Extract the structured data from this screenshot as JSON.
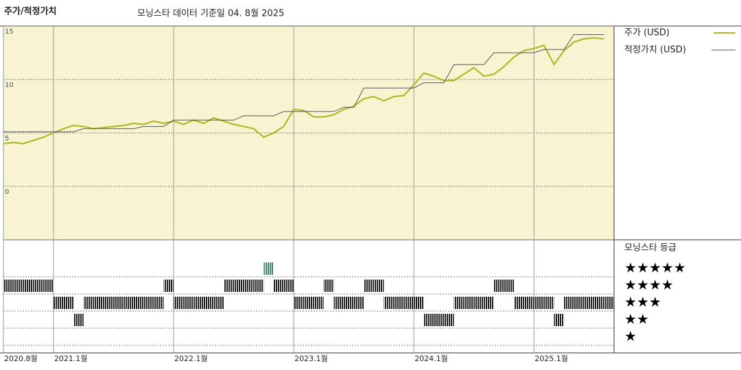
{
  "chart_data": [
    {
      "type": "line",
      "title": "주가/적정가치",
      "subtitle": "모닝스타 데이터 기준일 04. 8월 2025",
      "x": [
        "2020-08",
        "2020-09",
        "2020-10",
        "2020-11",
        "2020-12",
        "2021-01",
        "2021-02",
        "2021-03",
        "2021-04",
        "2021-05",
        "2021-06",
        "2021-07",
        "2021-08",
        "2021-09",
        "2021-10",
        "2021-11",
        "2021-12",
        "2022-01",
        "2022-02",
        "2022-03",
        "2022-04",
        "2022-05",
        "2022-06",
        "2022-07",
        "2022-08",
        "2022-09",
        "2022-10",
        "2022-11",
        "2022-12",
        "2023-01",
        "2023-02",
        "2023-03",
        "2023-04",
        "2023-05",
        "2023-06",
        "2023-07",
        "2023-08",
        "2023-09",
        "2023-10",
        "2023-11",
        "2023-12",
        "2024-01",
        "2024-02",
        "2024-03",
        "2024-04",
        "2024-05",
        "2024-06",
        "2024-07",
        "2024-08",
        "2024-09",
        "2024-10",
        "2024-11",
        "2024-12",
        "2025-01",
        "2025-02",
        "2025-03",
        "2025-04",
        "2025-05",
        "2025-06",
        "2025-07",
        "2025-08"
      ],
      "series": [
        {
          "name": "주가 (USD)",
          "color": "#b3b82a",
          "width": 2.2,
          "values": [
            4.0,
            4.1,
            4.0,
            4.3,
            4.6,
            5.0,
            5.4,
            5.7,
            5.6,
            5.4,
            5.5,
            5.6,
            5.7,
            5.9,
            5.8,
            6.1,
            5.9,
            6.1,
            5.8,
            6.2,
            5.9,
            6.4,
            6.1,
            5.8,
            5.6,
            5.4,
            4.6,
            5.0,
            5.6,
            7.2,
            7.1,
            6.5,
            6.5,
            6.7,
            7.2,
            7.5,
            8.2,
            8.4,
            8.0,
            8.4,
            8.5,
            9.5,
            10.6,
            10.3,
            9.9,
            9.9,
            10.5,
            11.1,
            10.3,
            10.5,
            11.2,
            12.1,
            12.7,
            12.9,
            13.2,
            11.4,
            12.7,
            13.5,
            13.8,
            13.9,
            13.8
          ]
        },
        {
          "name": "적정가치 (USD)",
          "color": "#555555",
          "width": 1,
          "values": [
            5.1,
            5.1,
            5.1,
            5.1,
            5.1,
            5.1,
            5.1,
            5.1,
            5.4,
            5.4,
            5.4,
            5.4,
            5.4,
            5.4,
            5.6,
            5.6,
            5.6,
            6.2,
            6.2,
            6.2,
            6.2,
            6.2,
            6.2,
            6.2,
            6.6,
            6.6,
            6.6,
            6.6,
            7.0,
            7.0,
            7.0,
            7.0,
            7.0,
            7.0,
            7.4,
            7.4,
            9.2,
            9.2,
            9.2,
            9.2,
            9.2,
            9.2,
            9.7,
            9.7,
            9.7,
            11.4,
            11.4,
            11.4,
            11.4,
            12.5,
            12.5,
            12.5,
            12.5,
            12.5,
            12.8,
            12.8,
            12.8,
            14.2,
            14.2,
            14.2,
            14.2
          ]
        }
      ],
      "xlim": [
        "2020-08",
        "2025-09"
      ],
      "xticks": [
        {
          "value": "2020-08",
          "label": "2020.8월"
        },
        {
          "value": "2021-01",
          "label": "2021.1월"
        },
        {
          "value": "2022-01",
          "label": "2022.1월"
        },
        {
          "value": "2023-01",
          "label": "2023.1월"
        },
        {
          "value": "2024-01",
          "label": "2024.1월"
        },
        {
          "value": "2025-01",
          "label": "2025.1월"
        }
      ],
      "ylim": [
        -5,
        15
      ],
      "yticks": [
        0,
        5,
        10,
        15
      ],
      "grid": true,
      "background": "#f8f4d1"
    },
    {
      "type": "rating",
      "title": "모닝스타 등급",
      "color": "#222222",
      "highlight_color": "#3a8a64",
      "categories": [
        "★",
        "★★",
        "★★★",
        "★★★★",
        "★★★★★"
      ],
      "x": [
        "2020-08",
        "2020-09",
        "2020-10",
        "2020-11",
        "2020-12",
        "2021-01",
        "2021-02",
        "2021-03",
        "2021-04",
        "2021-05",
        "2021-06",
        "2021-07",
        "2021-08",
        "2021-09",
        "2021-10",
        "2021-11",
        "2021-12",
        "2022-01",
        "2022-02",
        "2022-03",
        "2022-04",
        "2022-05",
        "2022-06",
        "2022-07",
        "2022-08",
        "2022-09",
        "2022-10",
        "2022-11",
        "2022-12",
        "2023-01",
        "2023-02",
        "2023-03",
        "2023-04",
        "2023-05",
        "2023-06",
        "2023-07",
        "2023-08",
        "2023-09",
        "2023-10",
        "2023-11",
        "2023-12",
        "2024-01",
        "2024-02",
        "2024-03",
        "2024-04",
        "2024-05",
        "2024-06",
        "2024-07",
        "2024-08",
        "2024-09",
        "2024-10",
        "2024-11",
        "2024-12",
        "2025-01",
        "2025-02",
        "2025-03",
        "2025-04",
        "2025-05",
        "2025-06",
        "2025-07",
        "2025-08"
      ],
      "values": [
        4,
        4,
        4,
        4,
        4,
        3,
        3,
        2,
        3,
        3,
        3,
        3,
        3,
        3,
        3,
        3,
        4,
        3,
        3,
        3,
        3,
        3,
        4,
        4,
        4,
        4,
        5,
        4,
        4,
        3,
        3,
        3,
        4,
        3,
        3,
        3,
        4,
        4,
        3,
        3,
        3,
        3,
        2,
        2,
        2,
        3,
        3,
        3,
        3,
        4,
        4,
        3,
        3,
        3,
        3,
        2,
        3,
        3,
        3,
        3,
        3
      ]
    }
  ]
}
